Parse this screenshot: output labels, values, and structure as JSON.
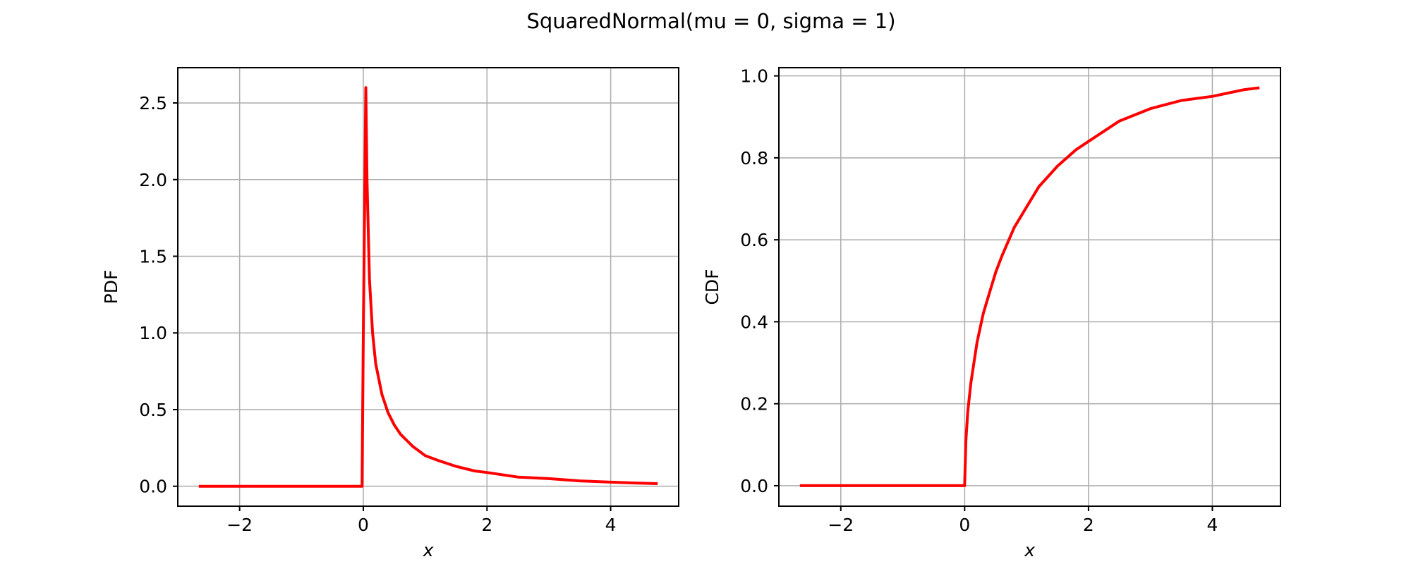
{
  "figure": {
    "title": "SquaredNormal(mu = 0, sigma = 1)"
  },
  "colors": {
    "line": "#ff0000",
    "grid": "#b0b0b0",
    "frame": "#000000"
  },
  "chart_data": [
    {
      "type": "line",
      "title": "",
      "xlabel": "x",
      "ylabel": "PDF",
      "xlim": [
        -3.0,
        5.1
      ],
      "ylim": [
        -0.13,
        2.73
      ],
      "xticks": [
        -2,
        0,
        2,
        4
      ],
      "xtick_labels": [
        "−2",
        "0",
        "2",
        "4"
      ],
      "yticks": [
        0.0,
        0.5,
        1.0,
        1.5,
        2.0,
        2.5
      ],
      "ytick_labels": [
        "0.0",
        "0.5",
        "1.0",
        "1.5",
        "2.0",
        "2.5"
      ],
      "grid": true,
      "legend": "none",
      "series": [
        {
          "color": "#ff0000",
          "x": [
            -2.66,
            -0.5,
            -0.02,
            0.0,
            0.04,
            0.06,
            0.1,
            0.15,
            0.2,
            0.3,
            0.4,
            0.5,
            0.6,
            0.7,
            0.8,
            1.0,
            1.2,
            1.5,
            1.8,
            2.0,
            2.5,
            3.0,
            3.5,
            4.0,
            4.5,
            4.76
          ],
          "y": [
            0.0,
            0.0,
            0.0,
            1.0,
            2.6,
            2.0,
            1.35,
            1.0,
            0.8,
            0.6,
            0.48,
            0.4,
            0.34,
            0.3,
            0.26,
            0.2,
            0.17,
            0.13,
            0.1,
            0.09,
            0.06,
            0.05,
            0.035,
            0.027,
            0.02,
            0.017
          ]
        }
      ]
    },
    {
      "type": "line",
      "title": "",
      "xlabel": "x",
      "ylabel": "CDF",
      "xlim": [
        -3.0,
        5.1
      ],
      "ylim": [
        -0.05,
        1.02
      ],
      "xticks": [
        -2,
        0,
        2,
        4
      ],
      "xtick_labels": [
        "−2",
        "0",
        "2",
        "4"
      ],
      "yticks": [
        0.0,
        0.2,
        0.4,
        0.6,
        0.8,
        1.0
      ],
      "ytick_labels": [
        "0.0",
        "0.2",
        "0.4",
        "0.6",
        "0.8",
        "1.0"
      ],
      "grid": true,
      "legend": "none",
      "series": [
        {
          "color": "#ff0000",
          "x": [
            -2.66,
            -0.5,
            -0.04,
            0.0,
            0.02,
            0.05,
            0.1,
            0.15,
            0.2,
            0.3,
            0.4,
            0.5,
            0.6,
            0.8,
            1.0,
            1.2,
            1.5,
            1.8,
            2.0,
            2.5,
            3.0,
            3.5,
            4.0,
            4.5,
            4.76
          ],
          "y": [
            0.0,
            0.0,
            0.0,
            0.0,
            0.11,
            0.18,
            0.25,
            0.3,
            0.35,
            0.42,
            0.47,
            0.52,
            0.56,
            0.63,
            0.68,
            0.73,
            0.78,
            0.82,
            0.84,
            0.89,
            0.92,
            0.94,
            0.95,
            0.966,
            0.971
          ]
        }
      ]
    }
  ]
}
